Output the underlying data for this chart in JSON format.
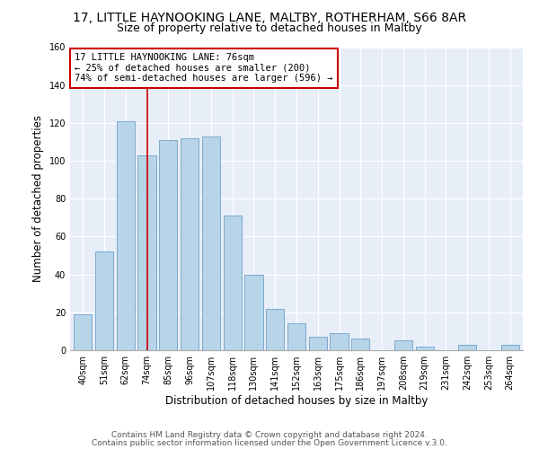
{
  "title": "17, LITTLE HAYNOOKING LANE, MALTBY, ROTHERHAM, S66 8AR",
  "subtitle": "Size of property relative to detached houses in Maltby",
  "xlabel": "Distribution of detached houses by size in Maltby",
  "ylabel": "Number of detached properties",
  "categories": [
    "40sqm",
    "51sqm",
    "62sqm",
    "74sqm",
    "85sqm",
    "96sqm",
    "107sqm",
    "118sqm",
    "130sqm",
    "141sqm",
    "152sqm",
    "163sqm",
    "175sqm",
    "186sqm",
    "197sqm",
    "208sqm",
    "219sqm",
    "231sqm",
    "242sqm",
    "253sqm",
    "264sqm"
  ],
  "values": [
    19,
    52,
    121,
    103,
    111,
    112,
    113,
    71,
    40,
    22,
    14,
    7,
    9,
    6,
    0,
    5,
    2,
    0,
    3,
    0,
    3
  ],
  "bar_color": "#b8d4e8",
  "bar_edge_color": "#7aaacf",
  "highlight_bar_index": 3,
  "highlight_line_color": "#cc0000",
  "annotation_line1": "17 LITTLE HAYNOOKING LANE: 76sqm",
  "annotation_line2": "← 25% of detached houses are smaller (200)",
  "annotation_line3": "74% of semi-detached houses are larger (596) →",
  "annotation_box_edge_color": "#cc0000",
  "ylim": [
    0,
    160
  ],
  "yticks": [
    0,
    20,
    40,
    60,
    80,
    100,
    120,
    140,
    160
  ],
  "footer1": "Contains HM Land Registry data © Crown copyright and database right 2024.",
  "footer2": "Contains public sector information licensed under the Open Government Licence v.3.0.",
  "title_fontsize": 10,
  "subtitle_fontsize": 9,
  "xlabel_fontsize": 8.5,
  "ylabel_fontsize": 8.5,
  "tick_fontsize": 7,
  "annotation_fontsize": 7.5,
  "footer_fontsize": 6.5,
  "bg_color": "#e8eef8"
}
